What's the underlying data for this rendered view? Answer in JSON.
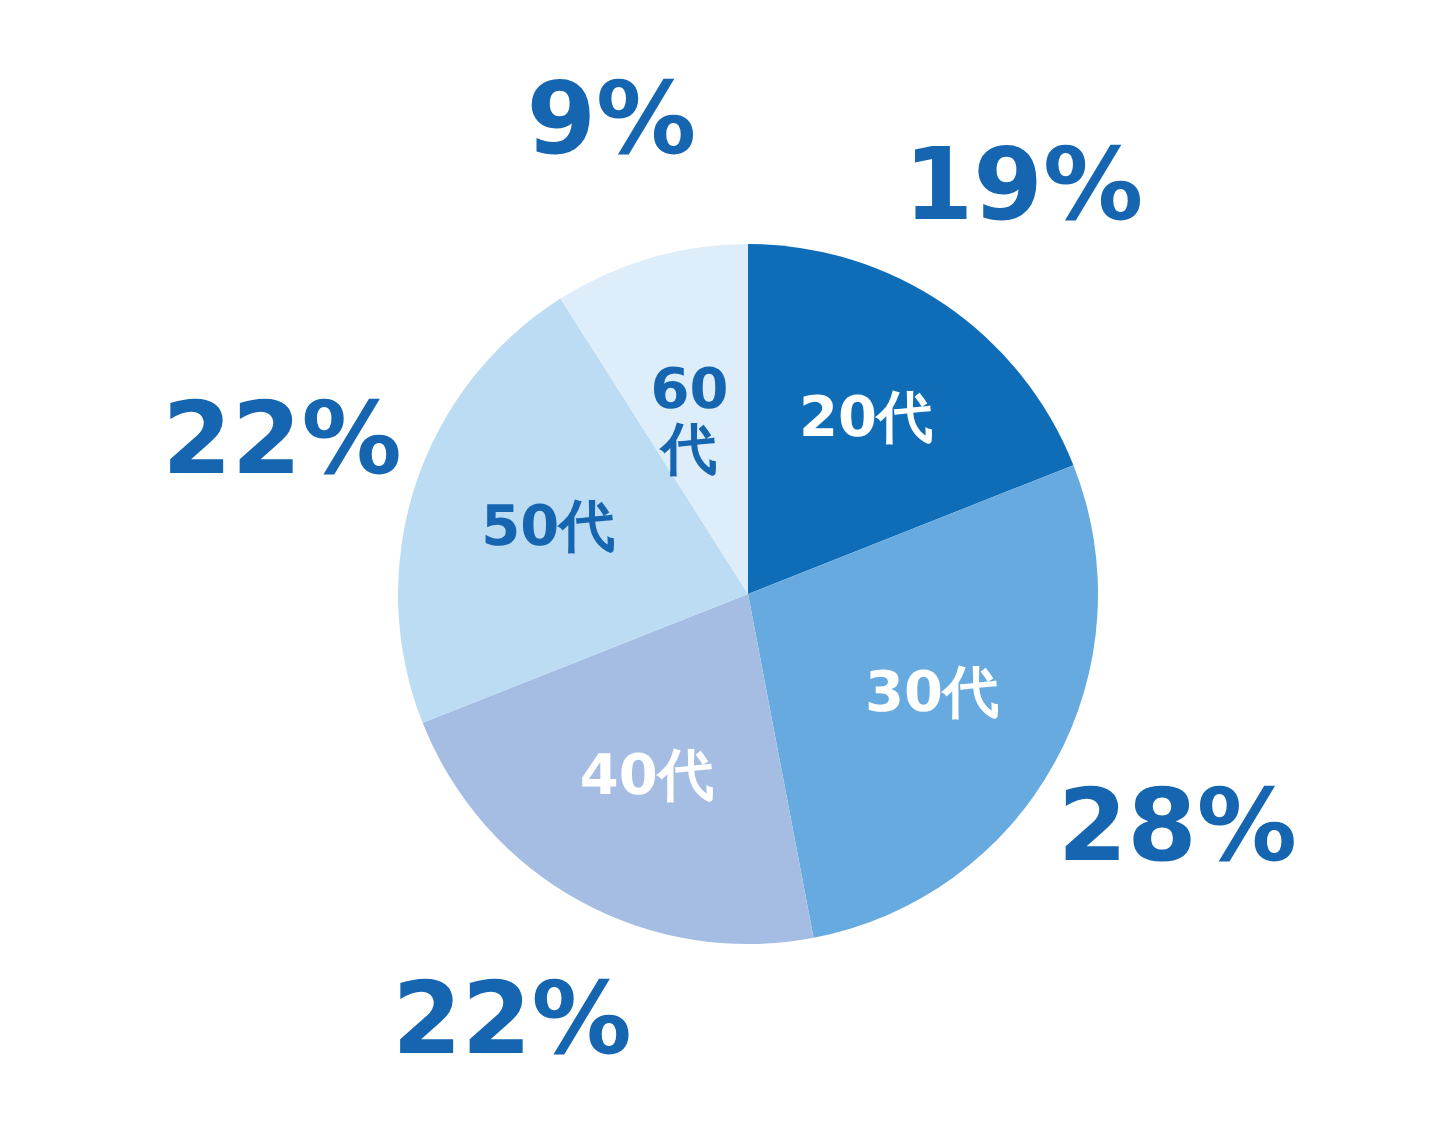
{
  "chart_data": {
    "type": "pie",
    "categories": [
      "20代",
      "30代",
      "40代",
      "50代",
      "60代"
    ],
    "values": [
      19,
      28,
      22,
      22,
      9
    ],
    "colors": [
      "#0f6db8",
      "#67aadf",
      "#a6bde3",
      "#bcdcf4",
      "#ddeefa"
    ],
    "value_labels": [
      "19%",
      "28%",
      "22%",
      "22%",
      "9%"
    ]
  }
}
